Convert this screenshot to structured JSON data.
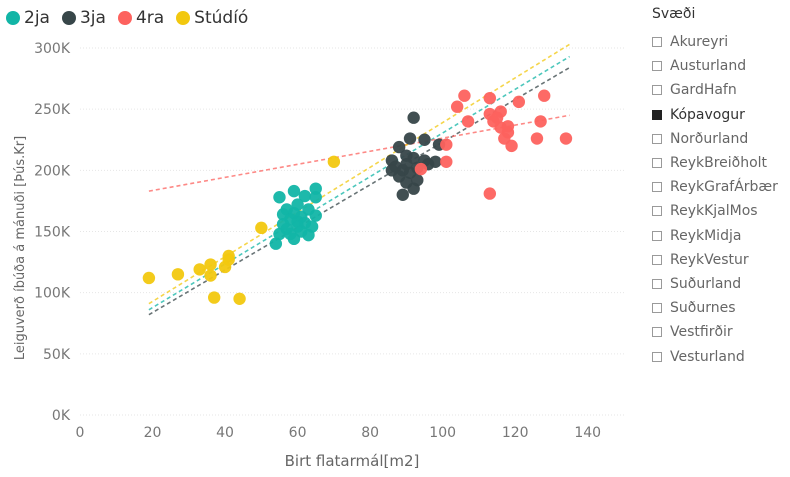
{
  "colors": {
    "2ja": "#12B5A6",
    "3ja": "#374649",
    "4ra": "#FD625E",
    "Studio": "#F2C80F"
  },
  "slicer": {
    "title": "Svæði",
    "items": [
      {
        "label": "Akureyri",
        "checked": false
      },
      {
        "label": "Austurland",
        "checked": false
      },
      {
        "label": "GardHafn",
        "checked": false
      },
      {
        "label": "Kópavogur",
        "checked": true
      },
      {
        "label": "Norðurland",
        "checked": false
      },
      {
        "label": "ReykBreiðholt",
        "checked": false
      },
      {
        "label": "ReykGrafÁrbær",
        "checked": false
      },
      {
        "label": "ReykKjalMos",
        "checked": false
      },
      {
        "label": "ReykMidja",
        "checked": false
      },
      {
        "label": "ReykVestur",
        "checked": false
      },
      {
        "label": "Suðurland",
        "checked": false
      },
      {
        "label": "Suðurnes",
        "checked": false
      },
      {
        "label": "Vestfirðir",
        "checked": false
      },
      {
        "label": "Vesturland",
        "checked": false
      }
    ]
  },
  "chart_data": {
    "type": "scatter",
    "xlabel": "Birt flatarmál[m2]",
    "ylabel": "Leiguverð íbúða á mánuði [Þús.Kr]",
    "xlim": [
      0,
      150
    ],
    "ylim": [
      0,
      300000
    ],
    "x_ticks": [
      0,
      20,
      40,
      60,
      80,
      100,
      120,
      140
    ],
    "y_ticks": [
      0,
      50000,
      100000,
      150000,
      200000,
      250000,
      300000
    ],
    "y_tick_labels": [
      "0K",
      "50K",
      "100K",
      "150K",
      "200K",
      "250K",
      "300K"
    ],
    "grid": true,
    "legend": "top-left",
    "series": [
      {
        "name": "2ja",
        "color_key": "2ja",
        "points": [
          [
            55,
            178
          ],
          [
            59,
            183
          ],
          [
            62,
            179
          ],
          [
            65,
            185
          ],
          [
            65,
            178
          ],
          [
            60,
            172
          ],
          [
            57,
            168
          ],
          [
            63,
            168
          ],
          [
            56,
            164
          ],
          [
            59,
            165
          ],
          [
            61,
            162
          ],
          [
            65,
            163
          ],
          [
            58,
            160
          ],
          [
            60,
            158
          ],
          [
            62,
            157
          ],
          [
            64,
            154
          ],
          [
            60,
            154
          ],
          [
            57,
            152
          ],
          [
            55,
            148
          ],
          [
            58,
            148
          ],
          [
            63,
            147
          ],
          [
            59,
            144
          ],
          [
            54,
            140
          ],
          [
            61,
            150
          ],
          [
            56,
            156
          ]
        ]
      },
      {
        "name": "3ja",
        "color_key": "3ja",
        "points": [
          [
            92,
            243
          ],
          [
            91,
            226
          ],
          [
            95,
            225
          ],
          [
            99,
            221
          ],
          [
            88,
            219
          ],
          [
            90,
            212
          ],
          [
            86,
            208
          ],
          [
            92,
            210
          ],
          [
            95,
            208
          ],
          [
            98,
            207
          ],
          [
            90,
            205
          ],
          [
            87,
            203
          ],
          [
            93,
            202
          ],
          [
            89,
            200
          ],
          [
            91,
            198
          ],
          [
            96,
            205
          ],
          [
            88,
            195
          ],
          [
            90,
            190
          ],
          [
            93,
            192
          ],
          [
            89,
            180
          ],
          [
            92,
            185
          ],
          [
            86,
            200
          ]
        ]
      },
      {
        "name": "4ra",
        "color_key": "4ra",
        "points": [
          [
            106,
            261
          ],
          [
            113,
            259
          ],
          [
            128,
            261
          ],
          [
            104,
            252
          ],
          [
            107,
            240
          ],
          [
            113,
            246
          ],
          [
            116,
            248
          ],
          [
            121,
            256
          ],
          [
            114,
            240
          ],
          [
            116,
            235
          ],
          [
            118,
            231
          ],
          [
            119,
            220
          ],
          [
            117,
            226
          ],
          [
            126,
            226
          ],
          [
            101,
            221
          ],
          [
            127,
            240
          ],
          [
            134,
            226
          ],
          [
            101,
            207
          ],
          [
            113,
            181
          ],
          [
            115,
            243
          ],
          [
            118,
            236
          ],
          [
            94,
            201
          ]
        ]
      },
      {
        "name": "Stúdíó",
        "color_key": "Studio",
        "points": [
          [
            19,
            112
          ],
          [
            27,
            115
          ],
          [
            33,
            119
          ],
          [
            36,
            123
          ],
          [
            40,
            121
          ],
          [
            41,
            130
          ],
          [
            36,
            114
          ],
          [
            41,
            127
          ],
          [
            50,
            153
          ],
          [
            70,
            207
          ],
          [
            37,
            96
          ],
          [
            44,
            95
          ]
        ]
      }
    ],
    "trendlines": [
      {
        "series": "2ja",
        "x": [
          19,
          135
        ],
        "y": [
          86,
          293
        ]
      },
      {
        "series": "3ja",
        "x": [
          19,
          135
        ],
        "y": [
          82,
          284
        ]
      },
      {
        "series": "4ra",
        "x": [
          19,
          135
        ],
        "y": [
          183,
          245
        ]
      },
      {
        "series": "Stúdíó",
        "x": [
          19,
          135
        ],
        "y": [
          91,
          303
        ]
      }
    ]
  }
}
